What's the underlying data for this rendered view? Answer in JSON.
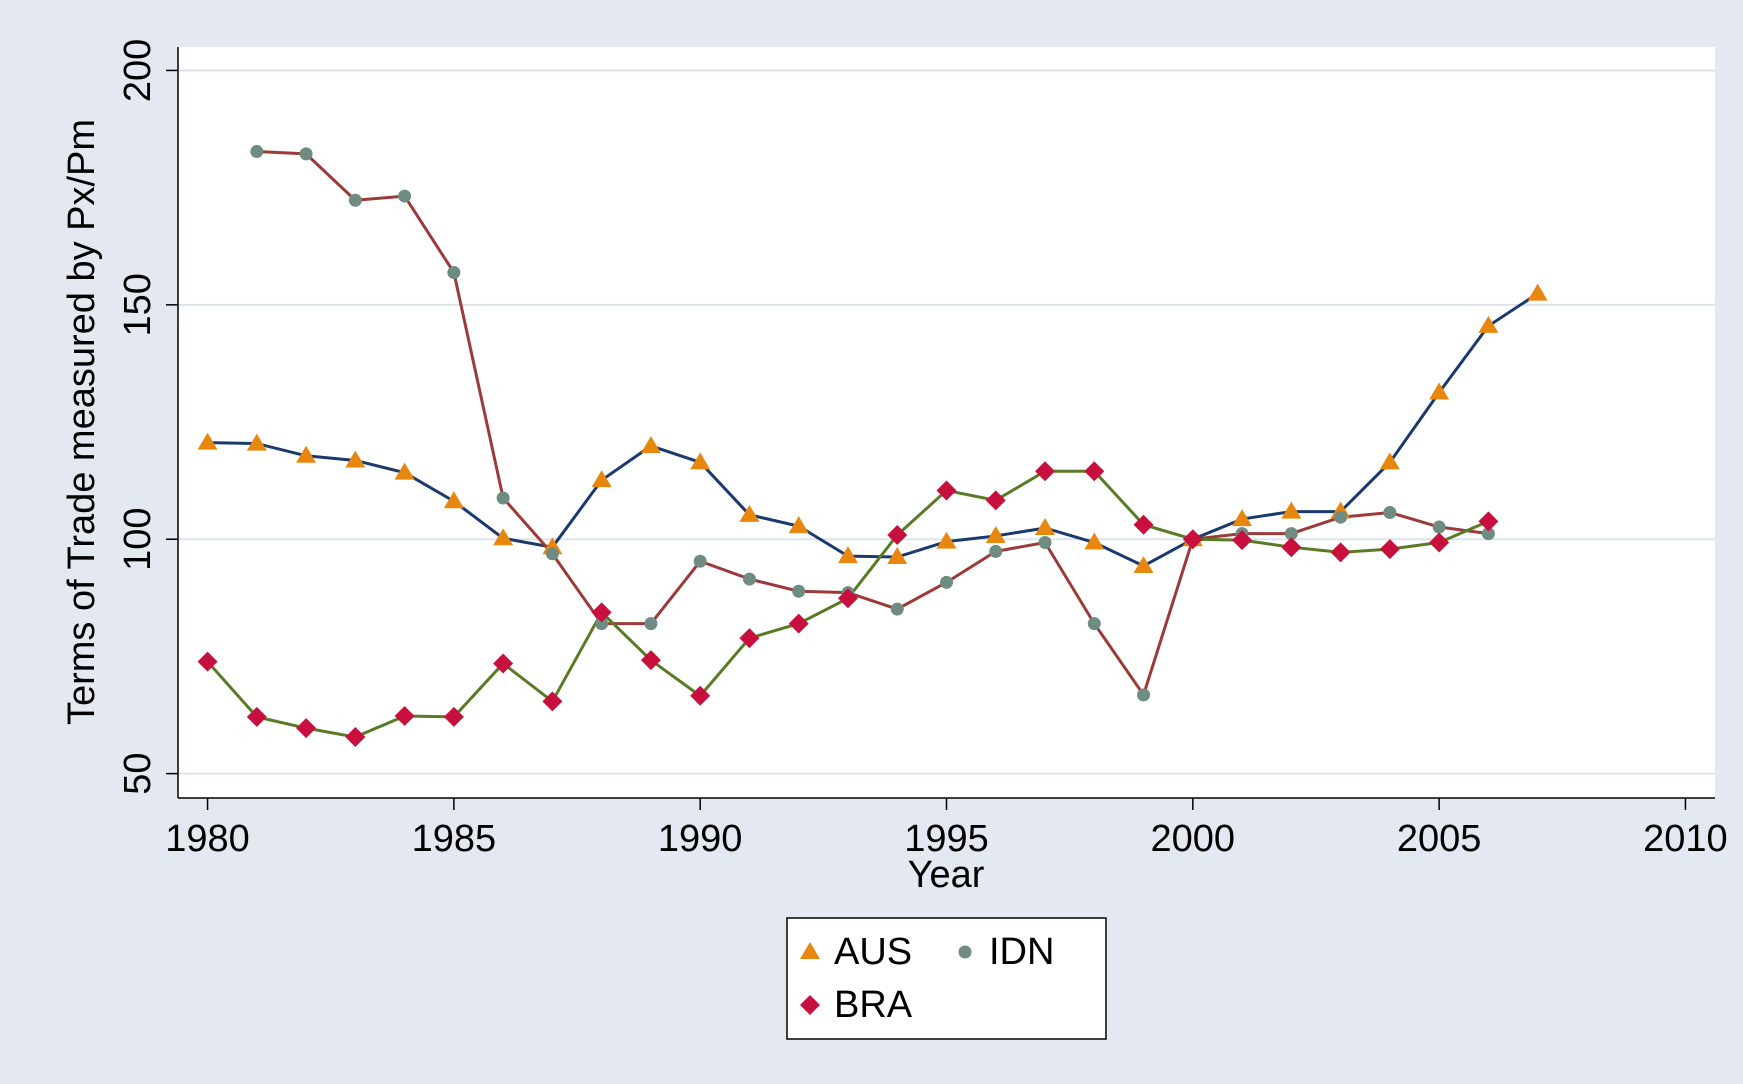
{
  "chart_data": {
    "type": "line",
    "x_label": "Year",
    "y_label": "Terms of Trade measured by Px/Pm",
    "x": [
      1980,
      1981,
      1982,
      1983,
      1984,
      1985,
      1986,
      1987,
      1988,
      1989,
      1990,
      1991,
      1992,
      1993,
      1994,
      1995,
      1996,
      1997,
      1998,
      1999,
      2000,
      2001,
      2002,
      2003,
      2004,
      2005,
      2006,
      2007
    ],
    "series": [
      {
        "name": "AUS",
        "color": "#e8870e",
        "line_color": "#1a3a6e",
        "marker": "triangle",
        "values": [
          120.6,
          120.4,
          117.8,
          116.8,
          114.2,
          108.1,
          100.2,
          98.3,
          112.6,
          119.9,
          116.4,
          105.2,
          102.8,
          96.4,
          96.2,
          99.5,
          100.7,
          102.4,
          99.3,
          94.3,
          100,
          104.3,
          105.9,
          105.9,
          116.4,
          131.3,
          145.5,
          152.4
        ]
      },
      {
        "name": "IDN",
        "color": "#6e8c82",
        "line_color": "#9c3a3a",
        "marker": "circle",
        "values": [
          null,
          182.7,
          182.2,
          172.3,
          173.2,
          156.9,
          108.8,
          96.9,
          82,
          82,
          95.3,
          91.5,
          88.9,
          88.6,
          85.1,
          90.8,
          97.4,
          99.3,
          82,
          66.8,
          100,
          101.2,
          101.2,
          104.7,
          105.7,
          102.6,
          101.2,
          null
        ]
      },
      {
        "name": "BRA",
        "color": "#c8103e",
        "line_color": "#5a7a26",
        "marker": "diamond",
        "values": [
          73.9,
          62.1,
          59.7,
          57.8,
          62.3,
          62.1,
          73.5,
          65.4,
          84.4,
          74.2,
          66.6,
          78.9,
          82,
          87.4,
          100.9,
          110.4,
          108.3,
          114.5,
          114.5,
          103.1,
          100,
          99.8,
          98.3,
          97.2,
          97.9,
          99.3,
          103.8,
          null
        ]
      }
    ],
    "xlim": [
      1979.4,
      2010.6
    ],
    "ylim": [
      44.8,
      205
    ],
    "xticks": [
      1980,
      1985,
      1990,
      1995,
      2000,
      2005,
      2010
    ],
    "yticks": [
      50,
      100,
      150,
      200
    ],
    "grid": true
  }
}
